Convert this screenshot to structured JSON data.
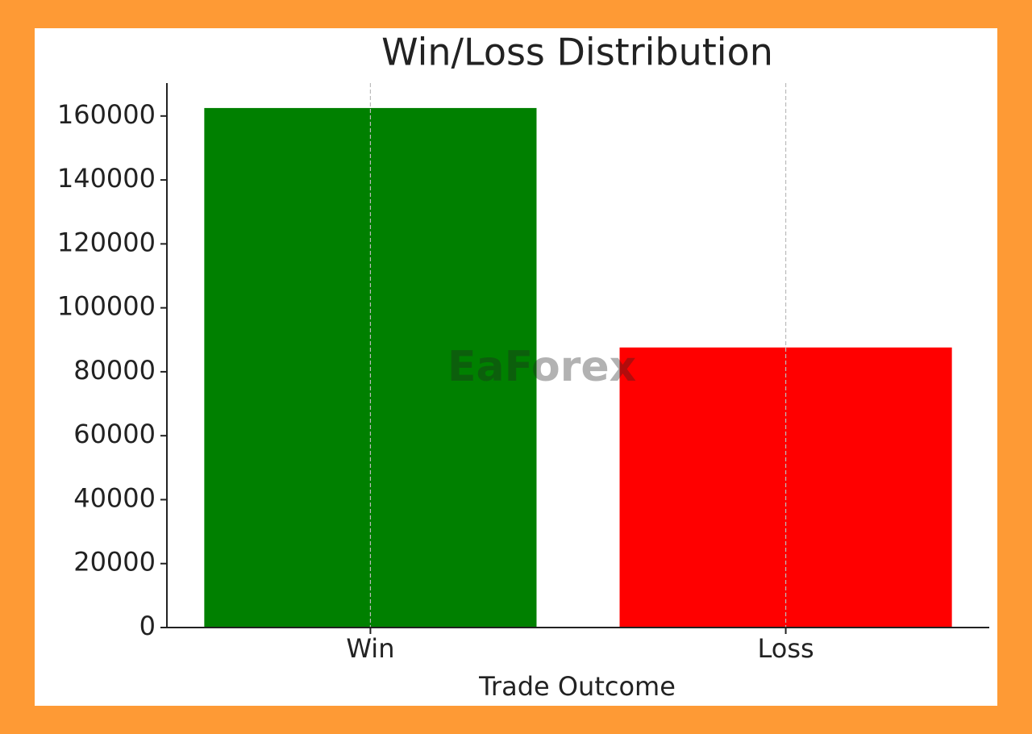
{
  "chart_data": {
    "type": "bar",
    "title": "Win/Loss Distribution",
    "x_label": "Trade Outcome",
    "categories": [
      "Win",
      "Loss"
    ],
    "values": [
      162500,
      87600
    ],
    "colors": [
      "#008000",
      "#ff0000"
    ],
    "ylim": [
      0,
      170300
    ],
    "yticks": [
      0,
      20000,
      40000,
      60000,
      80000,
      100000,
      120000,
      140000,
      160000
    ],
    "grid_x": true,
    "watermark": "EaForex"
  }
}
